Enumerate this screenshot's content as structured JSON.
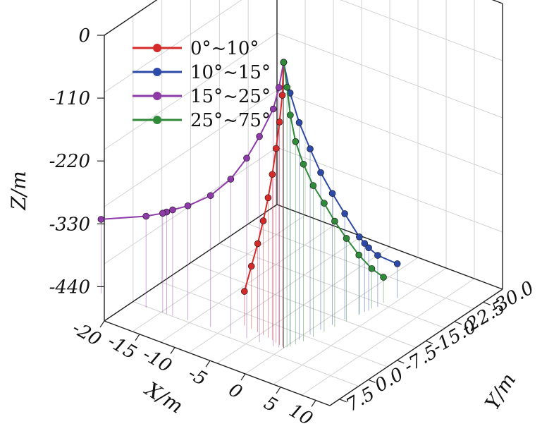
{
  "chart_data": {
    "type": "line",
    "subtype": "3d-scatter-line",
    "title": "",
    "xlabel": "X/m",
    "ylabel": "Y/m",
    "zlabel": "Z/m",
    "x_ticks": [
      "-20",
      "-15",
      "-10",
      "-5",
      "0",
      "5",
      "10"
    ],
    "y_ticks": [
      "7.5",
      "0.0",
      "-7.5",
      "-15.0",
      "-22.5",
      "-30.0"
    ],
    "z_ticks": [
      "0",
      "-110",
      "-220",
      "-330",
      "-440"
    ],
    "xlim": [
      -20,
      12
    ],
    "ylim": [
      -35,
      10
    ],
    "zlim": [
      -500,
      0
    ],
    "grid": true,
    "drop_lines": true,
    "legend_position": "top-left",
    "series": [
      {
        "name": "0°~10°",
        "color": "#d42a2a",
        "points": [
          {
            "x": 0,
            "y": 0,
            "z": 0
          },
          {
            "x": -0.3,
            "y": -0.2,
            "z": -60
          },
          {
            "x": -0.8,
            "y": -0.4,
            "z": -110
          },
          {
            "x": -1.4,
            "y": -0.6,
            "z": -160
          },
          {
            "x": -2.1,
            "y": -0.9,
            "z": -210
          },
          {
            "x": -2.8,
            "y": -1.1,
            "z": -255
          },
          {
            "x": -3.6,
            "y": -1.3,
            "z": -300
          },
          {
            "x": -4.5,
            "y": -1.5,
            "z": -345
          },
          {
            "x": -5.5,
            "y": -1.7,
            "z": -390
          },
          {
            "x": -6.6,
            "y": -1.9,
            "z": -440
          }
        ]
      },
      {
        "name": "10°~15°",
        "color": "#2e4aa8",
        "points": [
          {
            "x": 0,
            "y": 0,
            "z": 0
          },
          {
            "x": 0.1,
            "y": -1.5,
            "z": -60
          },
          {
            "x": 0.3,
            "y": -3.5,
            "z": -120
          },
          {
            "x": 0.6,
            "y": -5.8,
            "z": -175
          },
          {
            "x": 0.9,
            "y": -8.0,
            "z": -225
          },
          {
            "x": 1.3,
            "y": -10.3,
            "z": -270
          },
          {
            "x": 1.7,
            "y": -12.8,
            "z": -315
          },
          {
            "x": 2.3,
            "y": -15.5,
            "z": -365
          },
          {
            "x": 2.5,
            "y": -16.5,
            "z": -380
          },
          {
            "x": 2.7,
            "y": -17.2,
            "z": -390
          },
          {
            "x": 3.0,
            "y": -19.0,
            "z": -410
          },
          {
            "x": 3.6,
            "y": -23.0,
            "z": -440
          }
        ]
      },
      {
        "name": "15°~25°",
        "color": "#8e3aa8",
        "points": [
          {
            "x": 0,
            "y": 0,
            "z": 0
          },
          {
            "x": -0.5,
            "y": 0.3,
            "z": -45
          },
          {
            "x": -1.2,
            "y": 0.5,
            "z": -85
          },
          {
            "x": -3.0,
            "y": 0.8,
            "z": -140
          },
          {
            "x": -4.7,
            "y": 1.0,
            "z": -185
          },
          {
            "x": -6.8,
            "y": 1.3,
            "z": -230
          },
          {
            "x": -9.5,
            "y": 1.6,
            "z": -270
          },
          {
            "x": -12.5,
            "y": 2.0,
            "z": -300
          },
          {
            "x": -14.5,
            "y": 2.3,
            "z": -315
          },
          {
            "x": -15.3,
            "y": 2.4,
            "z": -322
          },
          {
            "x": -15.8,
            "y": 2.5,
            "z": -326
          },
          {
            "x": -18.0,
            "y": 2.8,
            "z": -340
          },
          {
            "x": -24.0,
            "y": 3.5,
            "z": -370
          }
        ]
      },
      {
        "name": "25°~75°",
        "color": "#2f8a3a",
        "points": [
          {
            "x": 0,
            "y": 0,
            "z": 0
          },
          {
            "x": 0.2,
            "y": -0.5,
            "z": -45
          },
          {
            "x": 0.4,
            "y": -1.0,
            "z": -95
          },
          {
            "x": 0.6,
            "y": -2.0,
            "z": -145
          },
          {
            "x": 0.9,
            "y": -3.5,
            "z": -190
          },
          {
            "x": 1.2,
            "y": -5.5,
            "z": -235
          },
          {
            "x": 1.5,
            "y": -7.8,
            "z": -275
          },
          {
            "x": 1.8,
            "y": -10.0,
            "z": -315
          },
          {
            "x": 2.1,
            "y": -12.5,
            "z": -355
          },
          {
            "x": 2.4,
            "y": -15.2,
            "z": -395
          },
          {
            "x": 2.7,
            "y": -18.0,
            "z": -430
          },
          {
            "x": 3.0,
            "y": -20.5,
            "z": -455
          }
        ]
      }
    ]
  }
}
